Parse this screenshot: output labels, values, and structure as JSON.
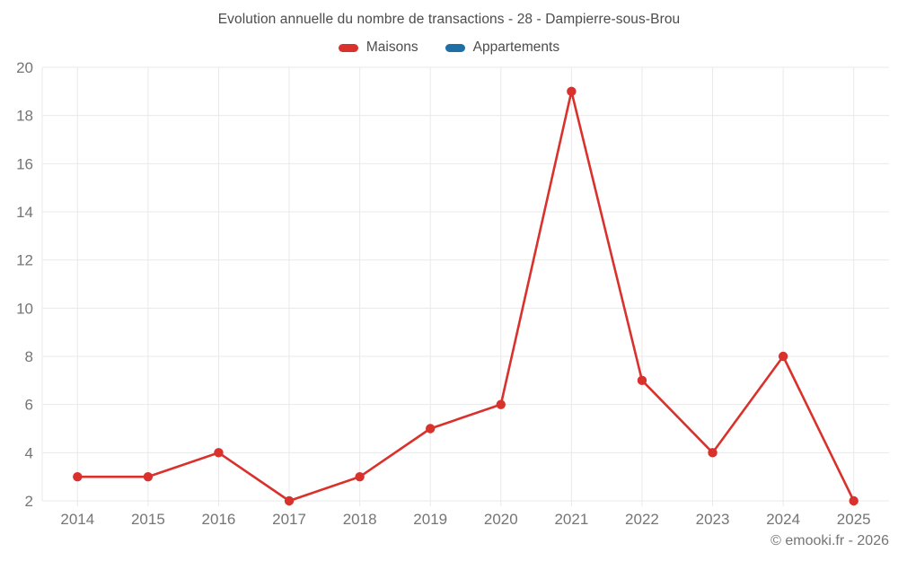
{
  "chart_data": {
    "type": "line",
    "title": "Evolution annuelle du nombre de transactions - 28 - Dampierre-sous-Brou",
    "categories": [
      "2014",
      "2015",
      "2016",
      "2017",
      "2018",
      "2019",
      "2020",
      "2021",
      "2022",
      "2023",
      "2024",
      "2025"
    ],
    "series": [
      {
        "name": "Maisons",
        "color": "#d9312b",
        "values": [
          3,
          3,
          4,
          2,
          3,
          5,
          6,
          19,
          7,
          4,
          8,
          2
        ]
      },
      {
        "name": "Appartements",
        "color": "#1d6fa5",
        "values": []
      }
    ],
    "ylim": [
      2,
      20
    ],
    "ytick_step": 2,
    "yticks": [
      2,
      4,
      6,
      8,
      10,
      12,
      14,
      16,
      18,
      20
    ],
    "grid": true,
    "legend_position": "top",
    "xlabel": "",
    "ylabel": ""
  },
  "footer": {
    "copyright": "© emooki.fr - 2026"
  },
  "style_colors": {
    "grid": "#e9e9e9",
    "tick_text": "#757575",
    "title_text": "#4c4c4c"
  }
}
